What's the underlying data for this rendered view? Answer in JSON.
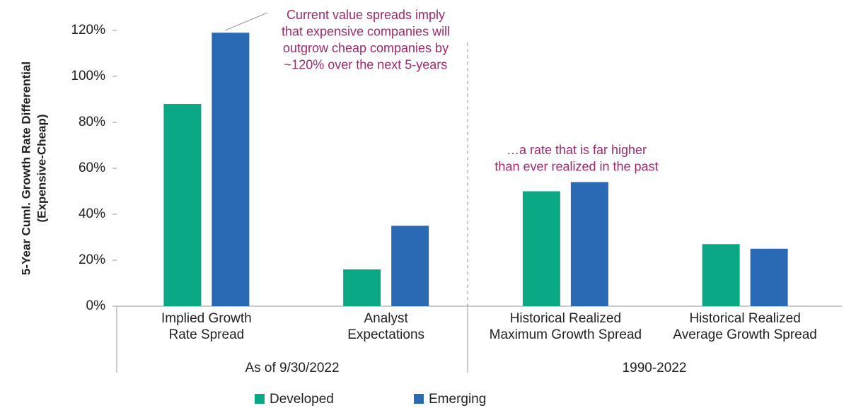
{
  "chart_data": {
    "type": "bar",
    "categories": [
      [
        "Implied Growth",
        "Rate Spread"
      ],
      [
        "Analyst",
        "Expectations"
      ],
      [
        "Historical Realized",
        "Maximum Growth Spread"
      ],
      [
        "Historical Realized",
        "Average Growth Spread"
      ]
    ],
    "group_labels": [
      "As of 9/30/2022",
      "1990-2022"
    ],
    "series": [
      {
        "name": "Developed",
        "color": "#0aa884",
        "values": [
          88,
          16,
          50,
          27
        ]
      },
      {
        "name": "Emerging",
        "color": "#2a69b3",
        "values": [
          119,
          35,
          54,
          25
        ]
      }
    ],
    "y_label": [
      "5-Year Cuml. Growth Rate Differential",
      "(Expensive-Cheap)"
    ],
    "ylim": [
      0,
      120
    ],
    "yticks": [
      {
        "value": 0,
        "label": "0%"
      },
      {
        "value": 20,
        "label": "20%"
      },
      {
        "value": 40,
        "label": "40%"
      },
      {
        "value": 60,
        "label": "60%"
      },
      {
        "value": 80,
        "label": "80%"
      },
      {
        "value": 100,
        "label": "100%"
      },
      {
        "value": 120,
        "label": "120%"
      }
    ],
    "annotations": [
      [
        "Current value spreads imply",
        "that expensive companies will",
        "outgrow cheap companies by",
        "~120% over the next 5-years"
      ],
      [
        "…a rate that is far higher",
        "than ever realized in the past"
      ]
    ]
  }
}
